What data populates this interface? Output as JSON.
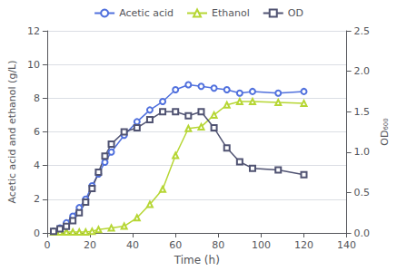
{
  "chart_data": {
    "type": "line",
    "xlabel": "Time (h)",
    "ylabel": "Acetic acid and ethanol (g/L)",
    "y2label": "OD₆₀₀",
    "xlim": [
      0,
      140
    ],
    "xticks": [
      0,
      20,
      40,
      60,
      80,
      100,
      120,
      140
    ],
    "ylim": [
      0,
      12
    ],
    "yticks": [
      0,
      2,
      4,
      6,
      8,
      10,
      12
    ],
    "y2lim": [
      0,
      2.5
    ],
    "y2ticks": [
      {
        "value": 0,
        "label": "0.0"
      },
      0.5,
      {
        "value": 1.0,
        "label": "1.0"
      },
      1.5,
      {
        "value": 2.0,
        "label": "2.0"
      },
      2.5
    ],
    "grid": "y",
    "legend": "top",
    "series": [
      {
        "name": "Acetic acid",
        "marker": "circle",
        "x": [
          3,
          6,
          9,
          12,
          15,
          18,
          21,
          24,
          27,
          30,
          36,
          42,
          48,
          54,
          60,
          66,
          72,
          78,
          84,
          90,
          96,
          108,
          120
        ],
        "values": [
          0.1,
          0.3,
          0.6,
          1.0,
          1.5,
          2.0,
          2.8,
          3.5,
          4.2,
          4.8,
          5.8,
          6.6,
          7.3,
          7.8,
          8.5,
          8.8,
          8.7,
          8.6,
          8.5,
          8.3,
          8.4,
          8.3,
          8.4
        ]
      },
      {
        "name": "Ethanol",
        "marker": "triangle",
        "x": [
          3,
          6,
          9,
          12,
          15,
          18,
          21,
          24,
          30,
          36,
          42,
          48,
          54,
          60,
          66,
          72,
          78,
          84,
          90,
          96,
          108,
          120
        ],
        "values": [
          0.05,
          0.05,
          0.05,
          0.05,
          0.05,
          0.05,
          0.1,
          0.2,
          0.3,
          0.4,
          0.9,
          1.7,
          2.6,
          4.6,
          6.2,
          6.3,
          7.0,
          7.6,
          7.8,
          7.8,
          7.75,
          7.7
        ]
      },
      {
        "name": "OD",
        "marker": "square",
        "axis": "y2",
        "x": [
          3,
          6,
          9,
          12,
          15,
          18,
          21,
          24,
          27,
          30,
          36,
          42,
          48,
          54,
          60,
          66,
          72,
          78,
          84,
          90,
          96,
          108,
          120
        ],
        "values": [
          0.02,
          0.05,
          0.08,
          0.15,
          0.25,
          0.38,
          0.55,
          0.75,
          0.95,
          1.1,
          1.25,
          1.3,
          1.4,
          1.5,
          1.5,
          1.45,
          1.5,
          1.3,
          1.05,
          0.88,
          0.8,
          0.78,
          0.72
        ]
      }
    ]
  }
}
